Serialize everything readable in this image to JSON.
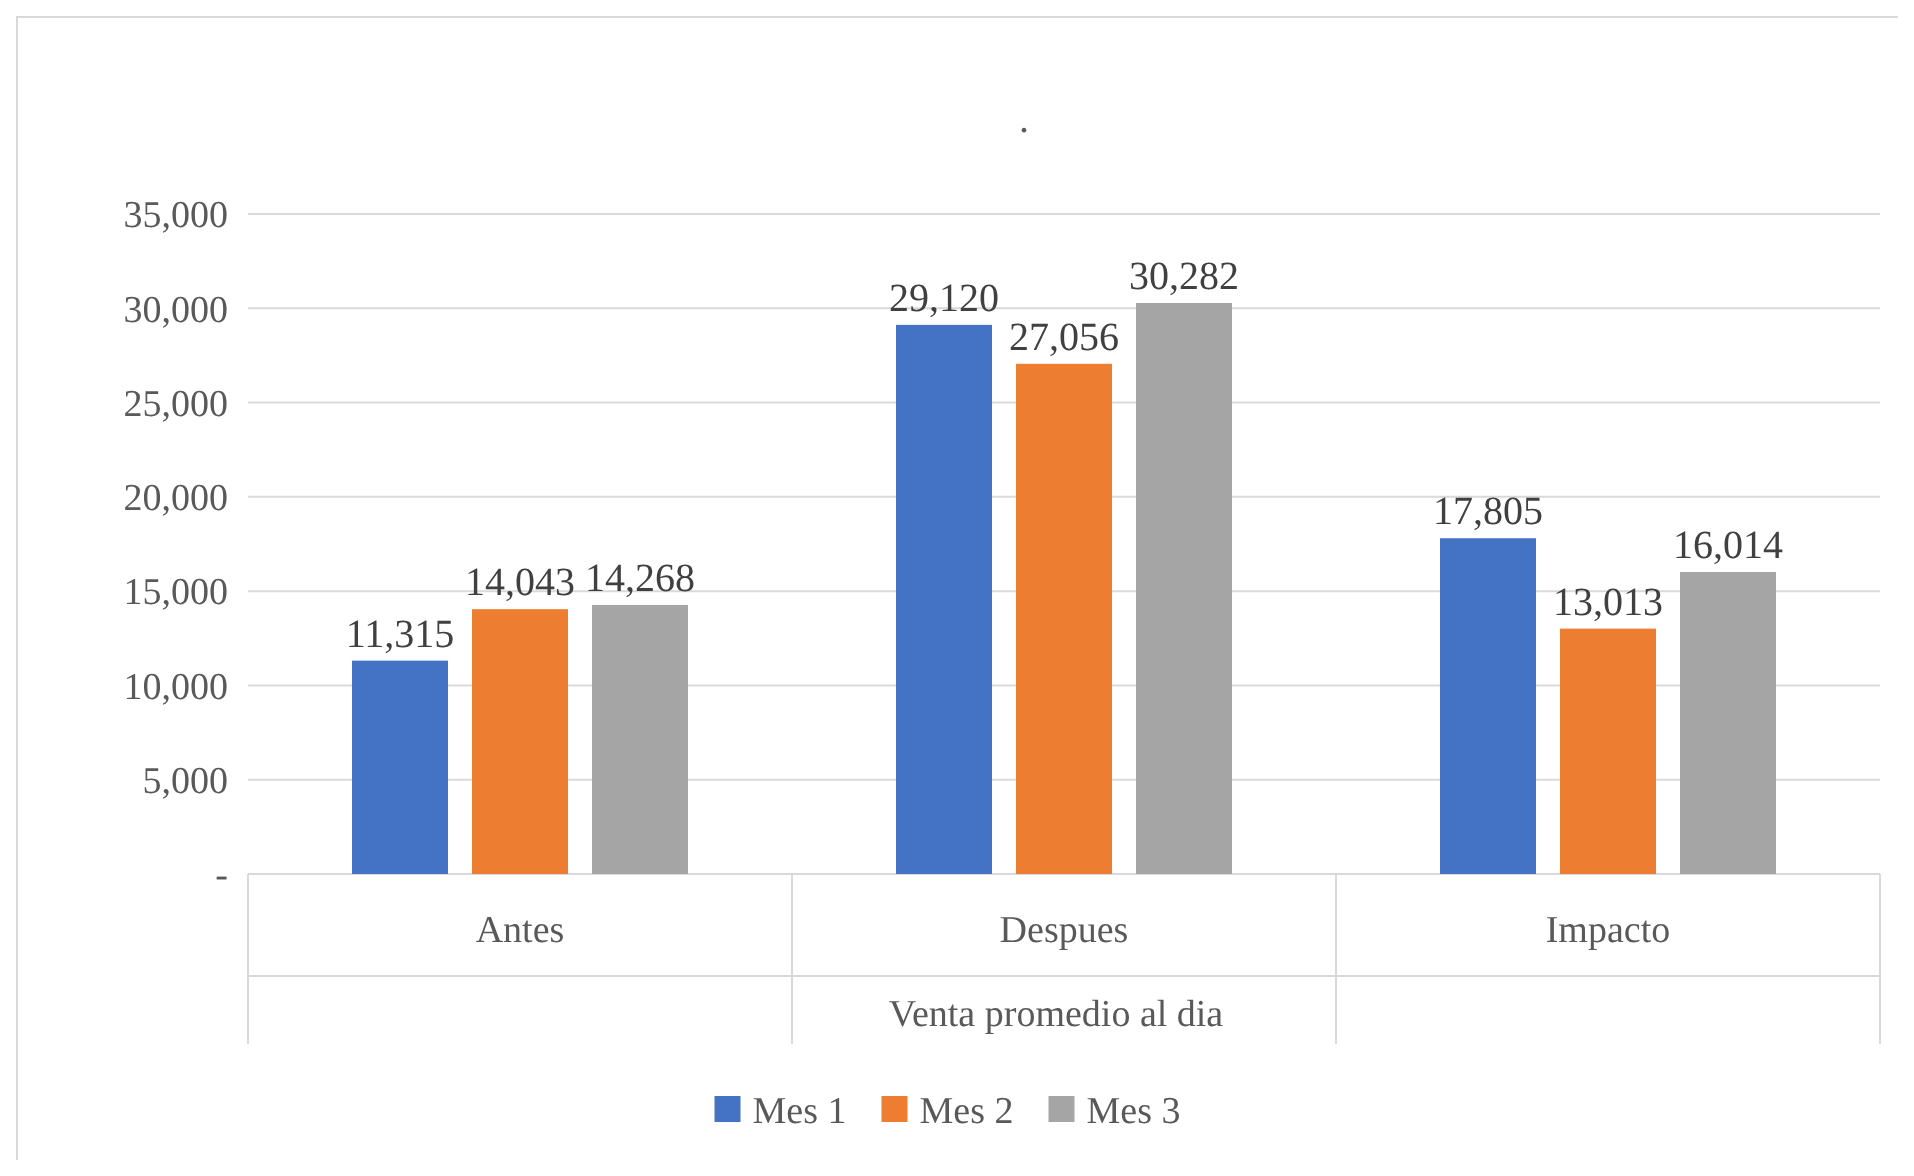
{
  "chart_data": {
    "type": "bar",
    "title": ".",
    "xlabel": "Venta promedio al dia",
    "categories": [
      "Antes",
      "Despues",
      "Impacto"
    ],
    "series": [
      {
        "name": "Mes 1",
        "color": "#4472c4",
        "values": [
          11315,
          29120,
          17805
        ],
        "value_labels": [
          "11,315",
          "29,120",
          "17,805"
        ]
      },
      {
        "name": "Mes 2",
        "color": "#ed7d31",
        "values": [
          14043,
          27056,
          13013
        ],
        "value_labels": [
          "14,043",
          "27,056",
          "13,013"
        ]
      },
      {
        "name": "Mes 3",
        "color": "#a5a5a5",
        "values": [
          14268,
          30282,
          16014
        ],
        "value_labels": [
          "14,268",
          "30,282",
          "16,014"
        ]
      }
    ],
    "ylim": [
      0,
      35000
    ],
    "yticks": [
      {
        "value": 0,
        "label": "-"
      },
      {
        "value": 5000,
        "label": "5,000"
      },
      {
        "value": 10000,
        "label": "10,000"
      },
      {
        "value": 15000,
        "label": "15,000"
      },
      {
        "value": 20000,
        "label": "20,000"
      },
      {
        "value": 25000,
        "label": "25,000"
      },
      {
        "value": 30000,
        "label": "30,000"
      },
      {
        "value": 35000,
        "label": "35,000"
      }
    ],
    "grid": "y",
    "legend": "bottom"
  }
}
